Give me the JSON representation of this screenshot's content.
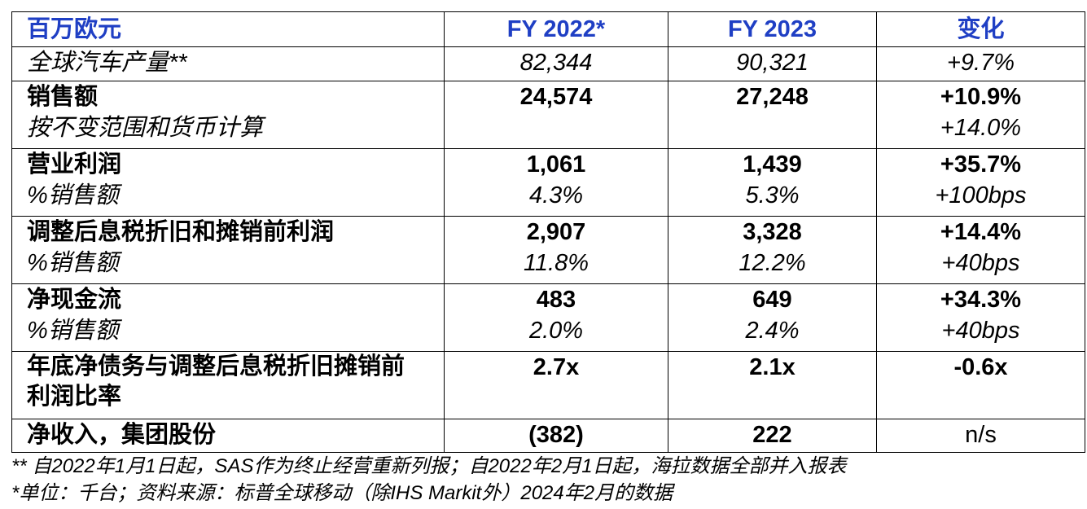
{
  "table": {
    "header": [
      "百万欧元",
      "FY 2022*",
      "FY 2023",
      "变化"
    ],
    "rows": [
      [
        [
          "全球汽车产量**"
        ],
        [
          "82,344"
        ],
        [
          "90,321"
        ],
        [
          "+9.7%"
        ]
      ],
      [
        [
          "销售额",
          "按不变范围和货币计算"
        ],
        [
          "24,574"
        ],
        [
          "27,248"
        ],
        [
          "+10.9%",
          "+14.0%"
        ]
      ],
      [
        [
          "营业利润",
          "%销售额"
        ],
        [
          "1,061",
          "4.3%"
        ],
        [
          "1,439",
          "5.3%"
        ],
        [
          "+35.7%",
          "+100bps"
        ]
      ],
      [
        [
          "调整后息税折旧和摊销前利润",
          "%销售额"
        ],
        [
          "2,907",
          "11.8%"
        ],
        [
          "3,328",
          "12.2%"
        ],
        [
          "+14.4%",
          "+40bps"
        ]
      ],
      [
        [
          "净现金流",
          "%销售额"
        ],
        [
          "483",
          "2.0%"
        ],
        [
          "649",
          "2.4%"
        ],
        [
          "+34.3%",
          "+40bps"
        ]
      ],
      [
        [
          "年底净债务与调整后息税折旧摊销前利润比率"
        ],
        [
          "2.7x"
        ],
        [
          "2.1x"
        ],
        [
          "-0.6x"
        ]
      ],
      [
        [
          "净收入，集团股份"
        ],
        [
          "(382)"
        ],
        [
          "222"
        ],
        [
          "n/s"
        ]
      ]
    ]
  },
  "footnotes": [
    "** 自2022年1月1日起，SAS作为终止经营重新列报；自2022年2月1日起，海拉数据全部并入报表",
    "*单位：千台；资料来源：标普全球移动（除IHS Markit外）2024年2月的数据"
  ]
}
